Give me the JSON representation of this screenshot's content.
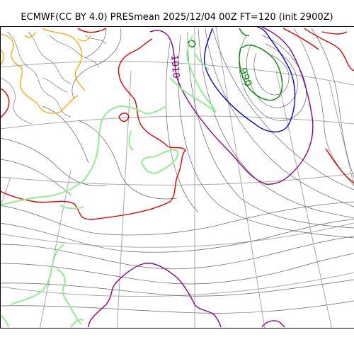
{
  "title": "ECMWF(CC BY 4.0) PRESmean 2025/12/04 00Z FT=120 (init 2900Z)",
  "contour_labels": {
    "purple_1010": "1010",
    "green_990": "990"
  },
  "colors": {
    "isobar": "#555555",
    "graticule": "#a0a0a0",
    "red_1020": "#e00000",
    "purple_1010": "#8b008b",
    "blue_1000": "#0000dd",
    "green_990": "#008800",
    "coastline": "#90ee90",
    "orange_1030": "#ffa500"
  }
}
